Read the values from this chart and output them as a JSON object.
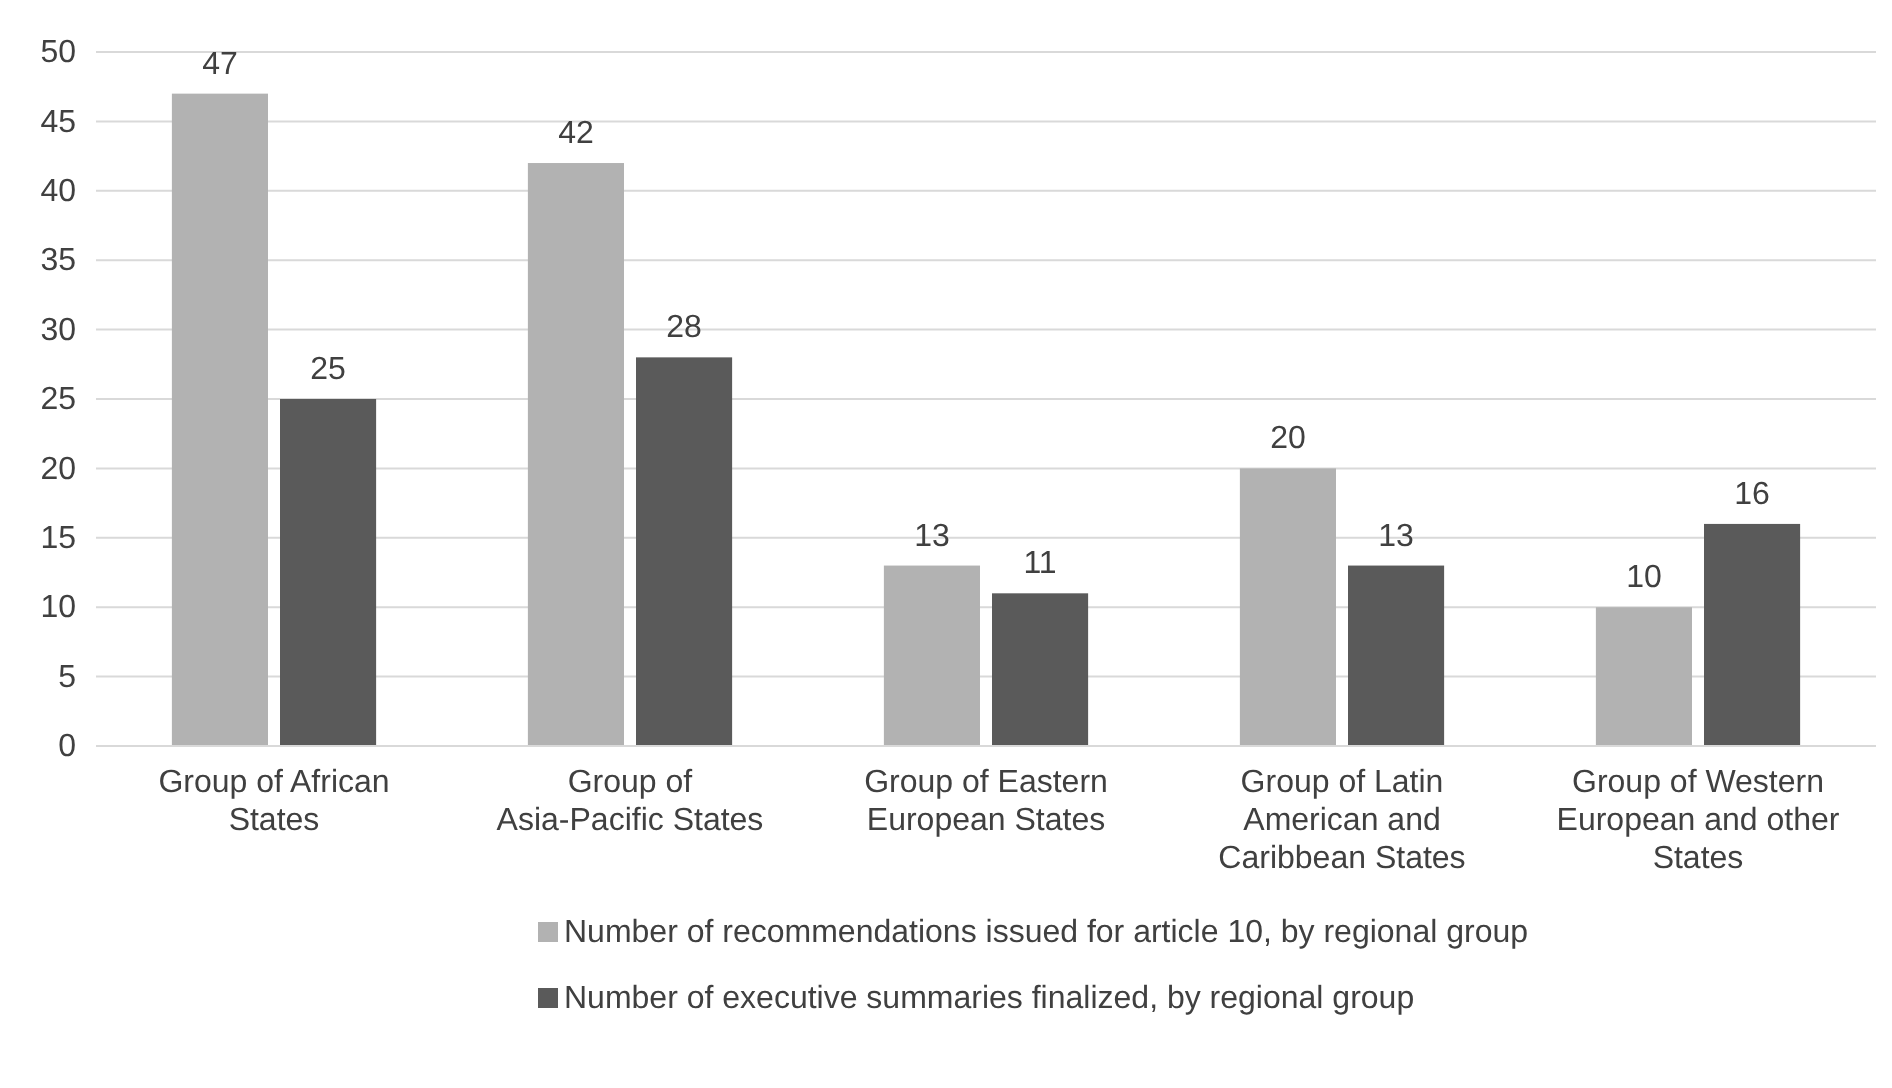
{
  "chart_data": {
    "type": "bar",
    "categories": [
      "Group of African States",
      "Group of Asia-Pacific States",
      "Group of Eastern European States",
      "Group of Latin American and Caribbean States",
      "Group of Western European and other States"
    ],
    "series": [
      {
        "name": "Number of recommendations issued for article 10, by regional group",
        "color": "#b2b2b2",
        "values": [
          47,
          42,
          13,
          20,
          10
        ]
      },
      {
        "name": "Number of executive summaries finalized, by regional group",
        "color": "#5a5a5a",
        "values": [
          25,
          28,
          11,
          13,
          16
        ]
      }
    ],
    "ylim": [
      0,
      50
    ],
    "yticks": [
      0,
      5,
      10,
      15,
      20,
      25,
      30,
      35,
      40,
      45,
      50
    ],
    "grid": "y",
    "data_labels": true,
    "legend": "bottom"
  }
}
